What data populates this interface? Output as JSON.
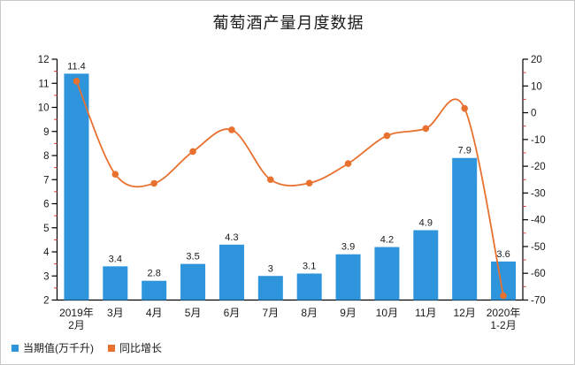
{
  "title": "葡萄酒产量月度数据",
  "legend": [
    {
      "label": "当期值(万千升)",
      "color": "#2E94DC"
    },
    {
      "label": "同比增长",
      "color": "#E8712F"
    }
  ],
  "colors": {
    "bar": "#2E94DC",
    "line": "#E8712F",
    "marker": "#E8712F",
    "axis": "#000000",
    "minor_tick": "#E23B3B",
    "text": "#1A1A1A",
    "frame_border": "#C9C9C9"
  },
  "chart_data": {
    "type": "bar",
    "title": "葡萄酒产量月度数据",
    "categories": [
      [
        "2019年",
        "2月"
      ],
      [
        "3月"
      ],
      [
        "4月"
      ],
      [
        "5月"
      ],
      [
        "6月"
      ],
      [
        "7月"
      ],
      [
        "8月"
      ],
      [
        "9月"
      ],
      [
        "10月"
      ],
      [
        "11月"
      ],
      [
        "12月"
      ],
      [
        "2020年",
        "1-2月"
      ]
    ],
    "series": [
      {
        "name": "当期值(万千升)",
        "type": "bar",
        "axis": "left",
        "values": [
          11.4,
          3.4,
          2.8,
          3.5,
          4.3,
          3,
          3.1,
          3.9,
          4.2,
          4.9,
          7.9,
          3.6
        ],
        "labels": [
          "11.4",
          "3.4",
          "2.8",
          "3.5",
          "4.3",
          "3",
          "3.1",
          "3.9",
          "4.2",
          "4.9",
          "7.9",
          "3.6"
        ],
        "color": "#2E94DC"
      },
      {
        "name": "同比增长",
        "type": "line",
        "axis": "right",
        "values": [
          11.8,
          -23,
          -26.4,
          -14.5,
          -6.4,
          -25,
          -26.3,
          -19,
          -8.6,
          -5.9,
          1.6,
          -68.4
        ],
        "color": "#E8712F"
      }
    ],
    "left_axis": {
      "min": 2,
      "max": 12,
      "major_step": 1,
      "minor_step": 0.5
    },
    "right_axis": {
      "min": -70,
      "max": 20,
      "major_step": 10,
      "minor_step": 5
    },
    "grid": false,
    "legend_position": "bottom-left"
  }
}
